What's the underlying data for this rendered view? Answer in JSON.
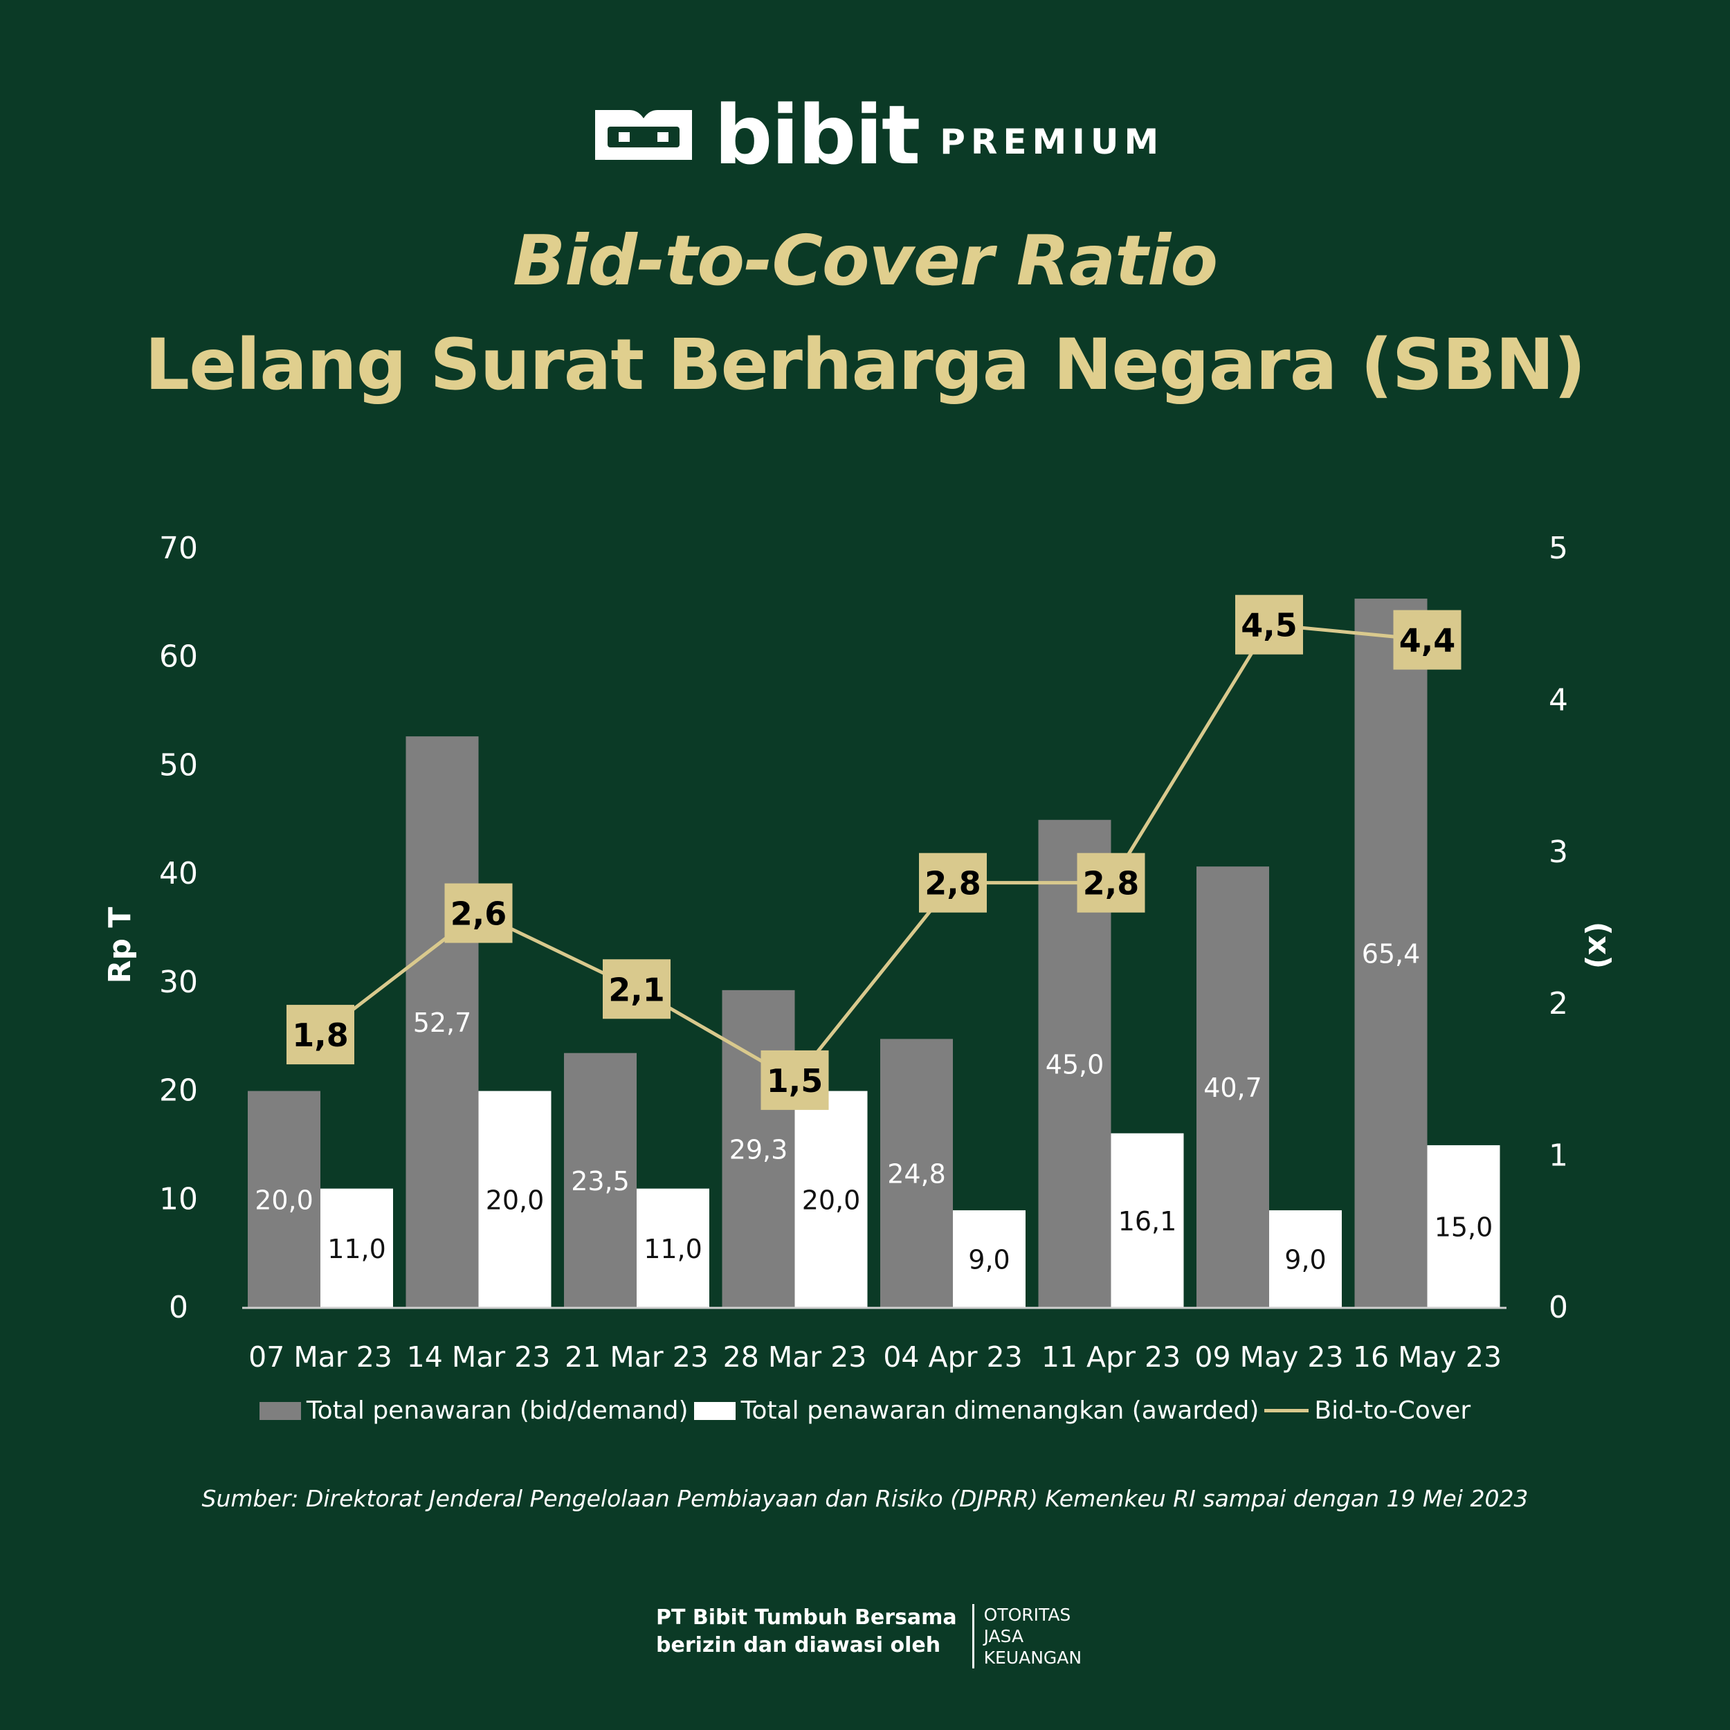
{
  "brand": {
    "name": "bibit",
    "tier": "PREMIUM"
  },
  "title_line1": "Bid-to-Cover Ratio",
  "title_line2": "Lelang Surat Berharga Negara (SBN)",
  "chart_data": {
    "type": "bar",
    "categories": [
      "07 Mar 23",
      "14 Mar 23",
      "21 Mar 23",
      "28 Mar 23",
      "04 Apr 23",
      "11 Apr 23",
      "09 May 23",
      "16 May 23"
    ],
    "series": [
      {
        "name": "Total penawaran (bid/demand)",
        "type": "bar",
        "axis": "left",
        "color": "#7f7f7f",
        "values": [
          20.0,
          52.7,
          23.5,
          29.3,
          24.8,
          45.0,
          40.7,
          65.4
        ],
        "labels": [
          "20,0",
          "52,7",
          "23,5",
          "29,3",
          "24,8",
          "45,0",
          "40,7",
          "65,4"
        ]
      },
      {
        "name": "Total penawaran dimenangkan (awarded)",
        "type": "bar",
        "axis": "left",
        "color": "#ffffff",
        "values": [
          11.0,
          20.0,
          11.0,
          20.0,
          9.0,
          16.1,
          9.0,
          15.0
        ],
        "labels": [
          "11,0",
          "20,0",
          "11,0",
          "20,0",
          "9,0",
          "16,1",
          "9,0",
          "15,0"
        ]
      },
      {
        "name": "Bid-to-Cover",
        "type": "line",
        "axis": "right",
        "color": "#d9c98d",
        "values": [
          1.8,
          2.6,
          2.1,
          1.5,
          2.8,
          2.8,
          4.5,
          4.4
        ],
        "labels": [
          "1,8",
          "2,6",
          "2,1",
          "1,5",
          "2,8",
          "2,8",
          "4,5",
          "4,4"
        ]
      }
    ],
    "ylabel": "Rp T",
    "ylim": [
      0,
      70
    ],
    "yticks": [
      0,
      10,
      20,
      30,
      40,
      50,
      60,
      70
    ],
    "ylabel_right": "(x)",
    "ylim_right": [
      0,
      5
    ],
    "yticks_right": [
      0,
      1,
      2,
      3,
      4,
      5
    ],
    "legend_position": "bottom",
    "grid": false
  },
  "source": "Sumber: Direktorat Jenderal Pengelolaan Pembiayaan dan Risiko (DJPRR) Kemenkeu RI sampai dengan 19 Mei 2023",
  "footer": {
    "line1": "PT Bibit Tumbuh Bersama",
    "line2": "berizin dan diawasi oleh",
    "ojk_line1": "OTORITAS",
    "ojk_line2": "JASA",
    "ojk_line3": "KEUANGAN"
  },
  "colors": {
    "background": "#0b3a26",
    "accent": "#e0cf8e",
    "bid_bar": "#7f7f7f",
    "awarded_bar": "#ffffff",
    "line": "#d9c98d"
  }
}
